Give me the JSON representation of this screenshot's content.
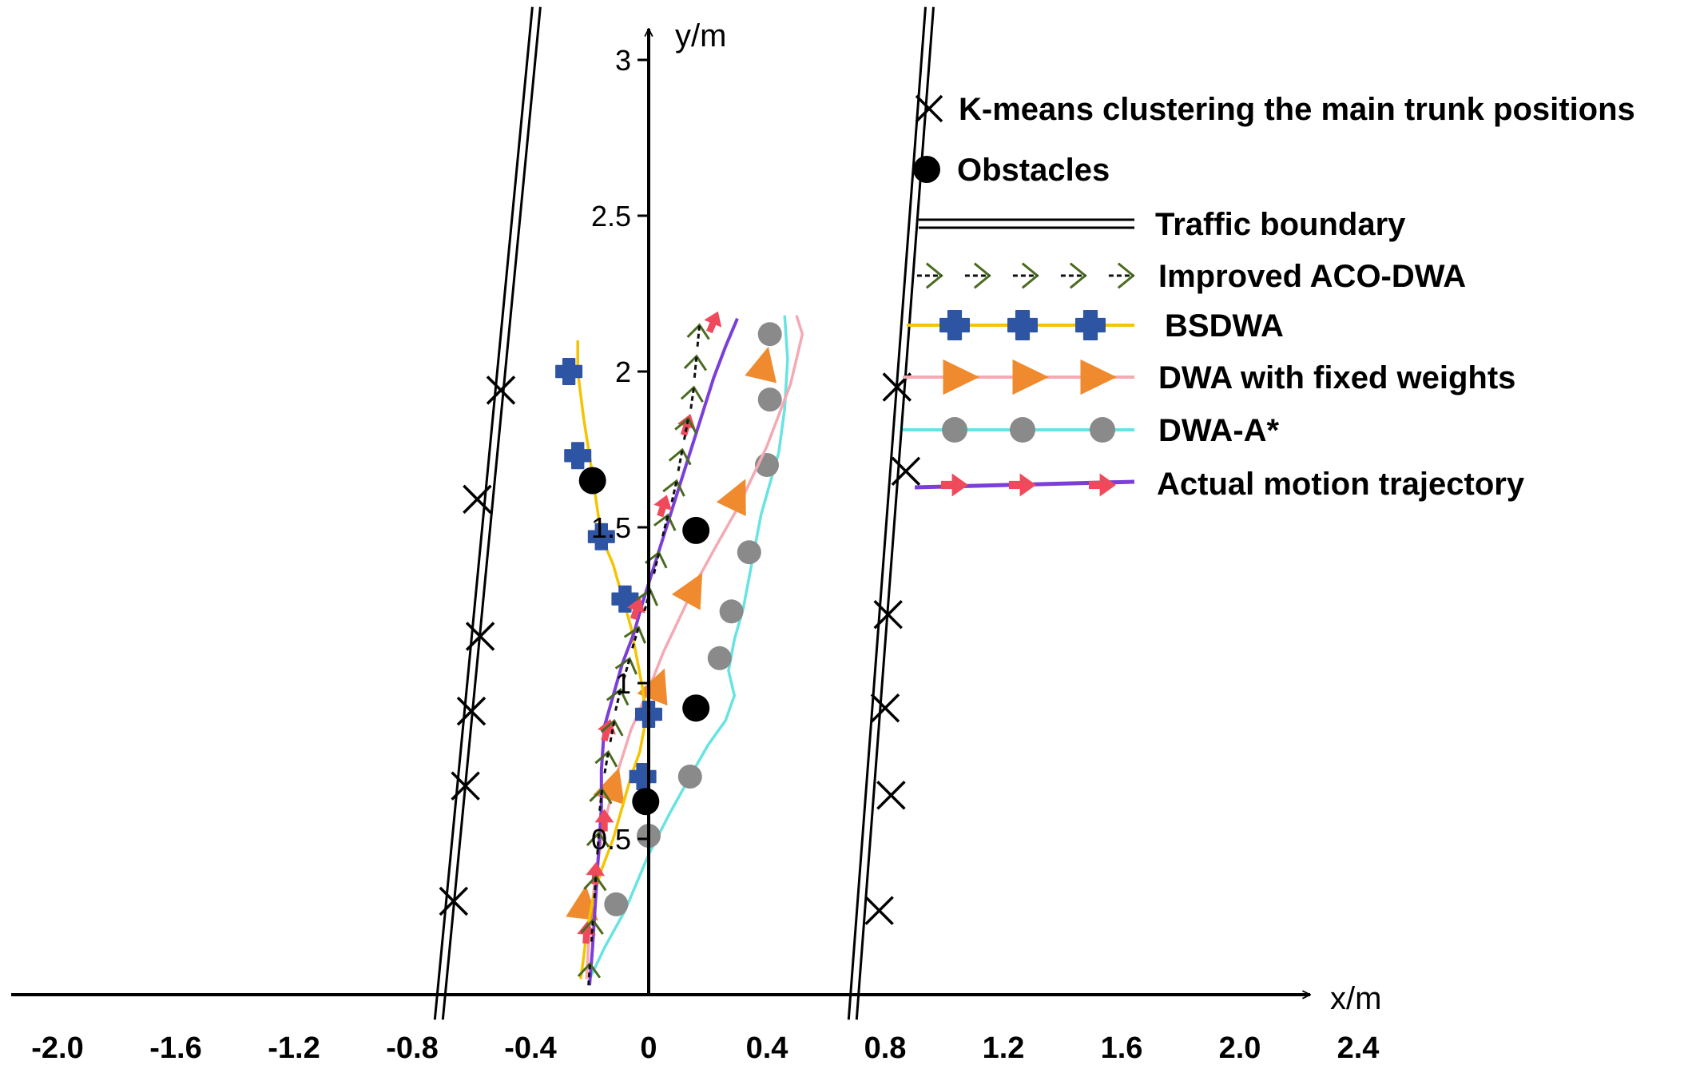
{
  "chart_data": {
    "type": "line",
    "xlabel": "x/m",
    "ylabel": "y/m",
    "xlim": [
      -2.0,
      2.4
    ],
    "ylim": [
      0,
      3.0
    ],
    "x_ticks": [
      "-2.0",
      "-1.6",
      "-1.2",
      "-0.8",
      "-0.4",
      "0",
      "0.4",
      "0.8",
      "1.2",
      "1.6",
      "2.0",
      "2.4"
    ],
    "y_ticks": [
      "0.5",
      "1",
      "1.5",
      "2",
      "2.5",
      "3"
    ],
    "colors": {
      "improved_aco_dwa": "#4a6b1f",
      "bsdwa_line": "#f5c400",
      "bsdwa_marker": "#2e55a4",
      "fixed_line": "#f4a9b3",
      "fixed_marker": "#ef8a2e",
      "dwa_astar_line": "#67e3e3",
      "dwa_astar_marker": "#8a8a8a",
      "actual_line": "#7b3fd8",
      "actual_marker": "#ef4a5c"
    },
    "legend": [
      {
        "key": "kmeans",
        "label": "K-means clustering the main trunk positions"
      },
      {
        "key": "obstacles",
        "label": "Obstacles"
      },
      {
        "key": "boundary",
        "label": "Traffic boundary"
      },
      {
        "key": "improved",
        "label": "Improved ACO-DWA"
      },
      {
        "key": "bsdwa",
        "label": "BSDWA"
      },
      {
        "key": "fixed",
        "label": "DWA with fixed weights"
      },
      {
        "key": "astar",
        "label": "DWA-A*"
      },
      {
        "key": "actual",
        "label": "Actual motion trajectory"
      }
    ],
    "kmeans_points": [
      [
        -0.5,
        1.94
      ],
      [
        -0.58,
        1.59
      ],
      [
        -0.57,
        1.15
      ],
      [
        -0.6,
        0.91
      ],
      [
        -0.62,
        0.67
      ],
      [
        -0.66,
        0.3
      ],
      [
        0.84,
        1.95
      ],
      [
        0.87,
        1.68
      ],
      [
        0.81,
        1.22
      ],
      [
        0.8,
        0.92
      ],
      [
        0.82,
        0.64
      ],
      [
        0.78,
        0.27
      ]
    ],
    "obstacles": [
      [
        -0.19,
        1.65
      ],
      [
        0.16,
        1.49
      ],
      [
        0.16,
        0.92
      ],
      [
        -0.01,
        0.62
      ]
    ],
    "boundaries": [
      [
        [
          -0.71,
          -0.08
        ],
        [
          -0.38,
          3.17
        ]
      ],
      [
        [
          0.69,
          -0.08
        ],
        [
          0.95,
          3.17
        ]
      ]
    ],
    "series": [
      {
        "name": "Improved ACO-DWA",
        "x": [
          -0.2,
          -0.19,
          -0.18,
          -0.17,
          -0.16,
          -0.14,
          -0.12,
          -0.1,
          -0.07,
          -0.04,
          0.0,
          0.03,
          0.06,
          0.09,
          0.11,
          0.13,
          0.15,
          0.16,
          0.17
        ],
        "y": [
          0.08,
          0.22,
          0.36,
          0.5,
          0.64,
          0.76,
          0.86,
          0.96,
          1.06,
          1.16,
          1.28,
          1.4,
          1.52,
          1.63,
          1.73,
          1.83,
          1.93,
          2.03,
          2.13
        ]
      },
      {
        "name": "BSDWA",
        "x": [
          -0.24,
          -0.24,
          -0.22,
          -0.2,
          -0.18,
          -0.16,
          -0.12,
          -0.09,
          -0.06,
          -0.04,
          -0.02,
          -0.01,
          -0.03,
          -0.06,
          -0.09,
          -0.12,
          -0.16,
          -0.19,
          -0.21,
          -0.22,
          -0.23
        ],
        "y": [
          2.1,
          2.0,
          1.85,
          1.73,
          1.6,
          1.47,
          1.38,
          1.28,
          1.18,
          1.08,
          0.98,
          0.88,
          0.78,
          0.7,
          0.6,
          0.5,
          0.4,
          0.3,
          0.2,
          0.12,
          0.05
        ],
        "marker_x": [
          -0.27,
          -0.24,
          -0.16,
          -0.08,
          0.0,
          -0.02
        ],
        "marker_y": [
          2.0,
          1.73,
          1.47,
          1.27,
          0.9,
          0.7
        ]
      },
      {
        "name": "DWA with fixed weights",
        "x": [
          -0.21,
          -0.2,
          -0.18,
          -0.15,
          -0.11,
          -0.06,
          0.0,
          0.05,
          0.11,
          0.17,
          0.24,
          0.3,
          0.35,
          0.4,
          0.44,
          0.48,
          0.5,
          0.52,
          0.5
        ],
        "y": [
          0.05,
          0.22,
          0.38,
          0.55,
          0.7,
          0.85,
          0.98,
          1.1,
          1.22,
          1.34,
          1.46,
          1.56,
          1.66,
          1.76,
          1.86,
          1.96,
          2.04,
          2.12,
          2.18
        ],
        "marker_x": [
          -0.22,
          -0.12,
          0.03,
          0.15,
          0.3,
          0.39
        ],
        "marker_y": [
          0.29,
          0.67,
          0.99,
          1.3,
          1.6,
          2.02
        ]
      },
      {
        "name": "DWA-A*",
        "x": [
          -0.2,
          -0.15,
          -0.08,
          0.0,
          0.07,
          0.14,
          0.2,
          0.26,
          0.29,
          0.27,
          0.29,
          0.32,
          0.34,
          0.36,
          0.38,
          0.41,
          0.44,
          0.46,
          0.47,
          0.46
        ],
        "y": [
          0.05,
          0.15,
          0.27,
          0.45,
          0.58,
          0.7,
          0.8,
          0.88,
          0.96,
          1.04,
          1.14,
          1.24,
          1.34,
          1.44,
          1.54,
          1.64,
          1.74,
          1.88,
          2.04,
          2.18
        ],
        "marker_x": [
          -0.11,
          0.0,
          0.14,
          0.24,
          0.28,
          0.34,
          0.4,
          0.41,
          0.41
        ],
        "marker_y": [
          0.29,
          0.51,
          0.7,
          1.08,
          1.23,
          1.42,
          1.7,
          1.91,
          2.12
        ]
      },
      {
        "name": "Actual motion trajectory",
        "x": [
          -0.2,
          -0.19,
          -0.18,
          -0.17,
          -0.16,
          -0.16,
          -0.15,
          -0.12,
          -0.09,
          -0.05,
          -0.02,
          0.02,
          0.06,
          0.1,
          0.14,
          0.18,
          0.22,
          0.26,
          0.3
        ],
        "y": [
          0.03,
          0.15,
          0.3,
          0.45,
          0.6,
          0.72,
          0.86,
          0.96,
          1.06,
          1.16,
          1.26,
          1.38,
          1.5,
          1.62,
          1.74,
          1.86,
          1.98,
          2.08,
          2.17
        ],
        "marker_x": [
          -0.21,
          -0.18,
          -0.15,
          -0.14,
          -0.04,
          0.05,
          0.13,
          0.22
        ],
        "marker_y": [
          0.2,
          0.39,
          0.56,
          0.85,
          1.24,
          1.57,
          1.83,
          2.16
        ]
      }
    ]
  }
}
